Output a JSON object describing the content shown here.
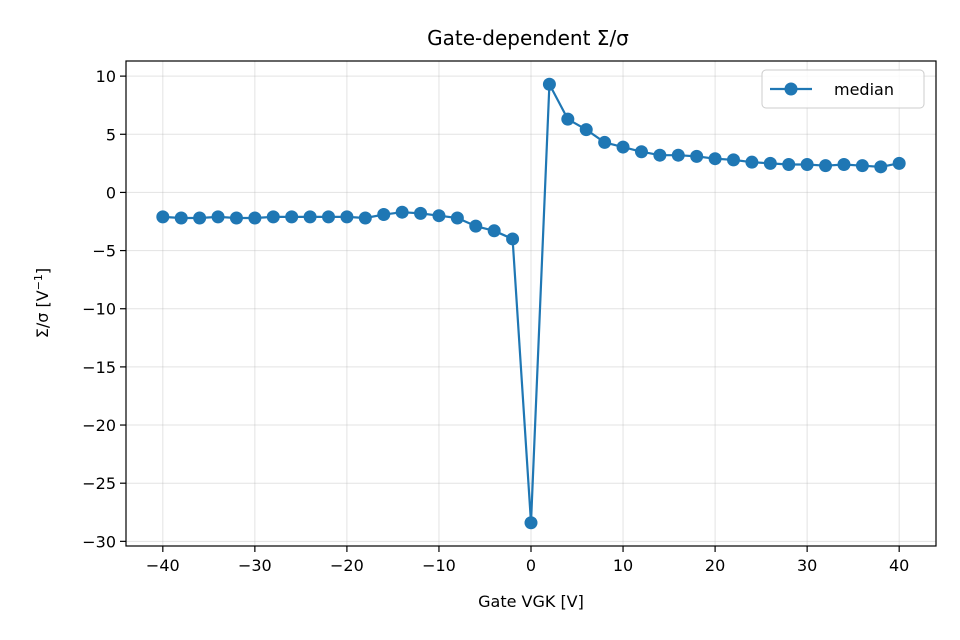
{
  "chart_data": {
    "type": "line",
    "title": "Gate-dependent Σ/σ",
    "xlabel": "Gate VGK [V]",
    "ylabel_main": "Σ/σ  [V",
    "ylabel_sup": "−1",
    "ylabel_end": "]",
    "xlim": [
      -44,
      44
    ],
    "ylim": [
      -30.4,
      11.3
    ],
    "xticks": [
      -40,
      -30,
      -20,
      -10,
      0,
      10,
      20,
      30,
      40
    ],
    "xtick_labels": [
      "−40",
      "−30",
      "−20",
      "−10",
      "0",
      "10",
      "20",
      "30",
      "40"
    ],
    "yticks": [
      -30,
      -25,
      -20,
      -15,
      -10,
      -5,
      0,
      5,
      10
    ],
    "ytick_labels": [
      "−30",
      "−25",
      "−20",
      "−15",
      "−10",
      "−5",
      "0",
      "5",
      "10"
    ],
    "grid": true,
    "legend_position": "top-right",
    "series": [
      {
        "name": "median",
        "color": "#1f77b4",
        "x": [
          -40,
          -38,
          -36,
          -34,
          -32,
          -30,
          -28,
          -26,
          -24,
          -22,
          -20,
          -18,
          -16,
          -14,
          -12,
          -10,
          -8,
          -6,
          -4,
          -2,
          0,
          2,
          4,
          6,
          8,
          10,
          12,
          14,
          16,
          18,
          20,
          22,
          24,
          26,
          28,
          30,
          32,
          34,
          36,
          38,
          40
        ],
        "y": [
          -2.1,
          -2.2,
          -2.2,
          -2.1,
          -2.2,
          -2.2,
          -2.1,
          -2.1,
          -2.1,
          -2.1,
          -2.1,
          -2.2,
          -1.9,
          -1.7,
          -1.8,
          -2.0,
          -2.2,
          -2.9,
          -3.3,
          -4.0,
          -28.4,
          9.3,
          6.3,
          5.4,
          4.3,
          3.9,
          3.5,
          3.2,
          3.2,
          3.1,
          2.9,
          2.8,
          2.6,
          2.5,
          2.4,
          2.4,
          2.3,
          2.4,
          2.3,
          2.2,
          2.5
        ]
      }
    ]
  }
}
